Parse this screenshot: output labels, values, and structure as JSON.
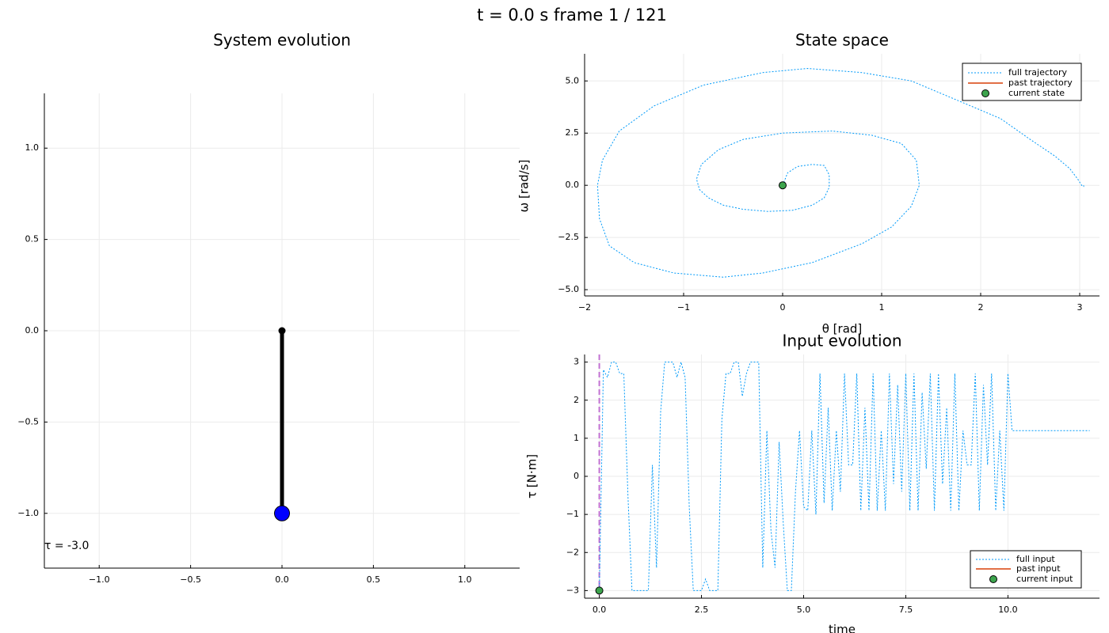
{
  "suptitle": "t = 0.0 s   frame 1 / 121",
  "colors": {
    "traj": "#009af9",
    "past": "#e26f46",
    "current": "#3da44d",
    "bob": "#0000ff",
    "rod": "#000000",
    "marker": "#c271d2"
  },
  "chart_data": [
    {
      "type": "line",
      "title": "System evolution",
      "xlim": [
        -1.3,
        1.3
      ],
      "ylim": [
        -1.3,
        1.3
      ],
      "xticks": [
        -1.0,
        -0.5,
        0.0,
        0.5,
        1.0
      ],
      "xtick_labels": [
        "−1.0",
        "−0.5",
        "0.0",
        "0.5",
        "1.0"
      ],
      "yticks": [
        -1.0,
        -0.5,
        0.0,
        0.5,
        1.0
      ],
      "ytick_labels": [
        "−1.0",
        "−0.5",
        "0.0",
        "0.5",
        "1.0"
      ],
      "grid": true,
      "pivot": [
        0.0,
        0.0
      ],
      "bob": [
        0.0,
        -1.0
      ],
      "annotation": "τ = -3.0"
    },
    {
      "type": "line",
      "title": "State space",
      "xlabel": "θ [rad]",
      "ylabel": "ω [rad/s]",
      "xlim": [
        -2.0,
        3.2
      ],
      "ylim": [
        -5.3,
        6.3
      ],
      "xticks": [
        -2,
        -1,
        0,
        1,
        2,
        3
      ],
      "xtick_labels": [
        "−2",
        "−1",
        "0",
        "1",
        "2",
        "3"
      ],
      "yticks": [
        -5.0,
        -2.5,
        0.0,
        2.5,
        5.0
      ],
      "ytick_labels": [
        "−5.0",
        "−2.5",
        "0.0",
        "2.5",
        "5.0"
      ],
      "grid": true,
      "legend": "top-right",
      "series": [
        {
          "name": "full trajectory",
          "style": "dotted",
          "x": [
            0.0,
            0.05,
            0.15,
            0.3,
            0.42,
            0.47,
            0.47,
            0.42,
            0.3,
            0.1,
            -0.15,
            -0.4,
            -0.6,
            -0.75,
            -0.84,
            -0.87,
            -0.82,
            -0.65,
            -0.4,
            0.0,
            0.5,
            0.9,
            1.2,
            1.35,
            1.38,
            1.3,
            1.1,
            0.8,
            0.3,
            -0.2,
            -0.6,
            -1.1,
            -1.5,
            -1.75,
            -1.85,
            -1.87,
            -1.82,
            -1.65,
            -1.3,
            -0.8,
            -0.2,
            0.25,
            0.8,
            1.3,
            1.6,
            1.9,
            2.2,
            2.5,
            2.75,
            2.9,
            2.98,
            3.02,
            3.04,
            3.04
          ],
          "y": [
            0.0,
            0.6,
            0.9,
            1.0,
            0.95,
            0.5,
            -0.1,
            -0.6,
            -0.95,
            -1.2,
            -1.25,
            -1.15,
            -0.95,
            -0.6,
            -0.2,
            0.3,
            1.0,
            1.7,
            2.2,
            2.5,
            2.6,
            2.4,
            2.0,
            1.2,
            0.0,
            -1.0,
            -2.0,
            -2.8,
            -3.7,
            -4.2,
            -4.4,
            -4.2,
            -3.7,
            -2.9,
            -1.6,
            0.0,
            1.2,
            2.6,
            3.8,
            4.8,
            5.4,
            5.6,
            5.4,
            5.0,
            4.4,
            3.8,
            3.2,
            2.2,
            1.4,
            0.8,
            0.3,
            0.0,
            -0.05,
            0.0
          ]
        },
        {
          "name": "past trajectory",
          "style": "solid",
          "x": [
            0.0
          ],
          "y": [
            0.0
          ]
        },
        {
          "name": "current state",
          "style": "marker",
          "x": [
            0.0
          ],
          "y": [
            0.0
          ]
        }
      ]
    },
    {
      "type": "line",
      "title": "Input evolution",
      "xlabel": "time",
      "ylabel": "τ [N·m]",
      "xlim": [
        -0.36,
        12.24
      ],
      "ylim": [
        -3.2,
        3.2
      ],
      "xticks": [
        0.0,
        2.5,
        5.0,
        7.5,
        10.0
      ],
      "xtick_labels": [
        "0.0",
        "2.5",
        "5.0",
        "7.5",
        "10.0"
      ],
      "yticks": [
        -3,
        -2,
        -1,
        0,
        1,
        2,
        3
      ],
      "ytick_labels": [
        "−3",
        "−2",
        "−1",
        "0",
        "1",
        "2",
        "3"
      ],
      "grid": true,
      "legend": "bottom-right",
      "series": [
        {
          "name": "full input",
          "style": "dotted",
          "x": [
            0.0,
            0.1,
            0.2,
            0.3,
            0.4,
            0.5,
            0.6,
            0.7,
            0.8,
            0.9,
            1.0,
            1.1,
            1.2,
            1.3,
            1.4,
            1.5,
            1.6,
            1.7,
            1.8,
            1.9,
            2.0,
            2.1,
            2.2,
            2.3,
            2.4,
            2.5,
            2.6,
            2.7,
            2.8,
            2.9,
            3.0,
            3.1,
            3.2,
            3.3,
            3.4,
            3.5,
            3.6,
            3.7,
            3.8,
            3.9,
            4.0,
            4.1,
            4.2,
            4.3,
            4.4,
            4.5,
            4.6,
            4.7,
            4.8,
            4.9,
            5.0,
            5.1,
            5.2,
            5.3,
            5.4,
            5.5,
            5.6,
            5.7,
            5.8,
            5.9,
            6.0,
            6.1,
            6.2,
            6.3,
            6.4,
            6.5,
            6.6,
            6.7,
            6.8,
            6.9,
            7.0,
            7.1,
            7.2,
            7.3,
            7.4,
            7.5,
            7.6,
            7.7,
            7.8,
            7.9,
            8.0,
            8.1,
            8.2,
            8.3,
            8.4,
            8.5,
            8.6,
            8.7,
            8.8,
            8.9,
            9.0,
            9.1,
            9.2,
            9.3,
            9.4,
            9.5,
            9.6,
            9.7,
            9.8,
            9.9,
            10.0,
            10.1,
            10.2,
            10.3,
            10.4,
            10.5,
            10.6,
            10.7,
            10.8,
            10.9,
            11.0,
            11.1,
            11.2,
            11.3,
            11.4,
            11.5,
            11.6,
            11.7,
            11.8,
            11.9,
            12.0
          ],
          "y": [
            -3.0,
            2.8,
            2.6,
            3.0,
            3.0,
            2.7,
            2.7,
            -0.5,
            -3.0,
            -3.0,
            -3.0,
            -3.0,
            -3.0,
            0.3,
            -2.4,
            1.7,
            3.0,
            3.0,
            3.0,
            2.6,
            3.0,
            2.6,
            -0.8,
            -3.0,
            -3.0,
            -3.0,
            -2.7,
            -3.0,
            -3.0,
            -3.0,
            1.5,
            2.7,
            2.7,
            3.0,
            3.0,
            2.1,
            2.7,
            3.0,
            3.0,
            3.0,
            -2.4,
            1.2,
            -1.4,
            -2.4,
            0.9,
            -1.2,
            -3.0,
            -3.0,
            -0.4,
            1.2,
            -0.8,
            -0.9,
            1.2,
            -1.0,
            2.7,
            -0.7,
            1.8,
            -0.9,
            1.2,
            -0.4,
            2.7,
            0.3,
            0.3,
            2.7,
            -0.9,
            1.8,
            -0.9,
            2.7,
            -0.9,
            1.2,
            -0.9,
            2.7,
            -0.2,
            2.4,
            -0.4,
            2.7,
            -0.9,
            2.7,
            -0.9,
            2.2,
            0.2,
            2.7,
            -0.9,
            2.7,
            -0.2,
            1.8,
            -0.9,
            2.7,
            -0.9,
            1.2,
            0.3,
            0.3,
            2.7,
            -0.9,
            2.4,
            0.3,
            2.7,
            -0.9,
            1.2,
            -0.9,
            2.7,
            1.2,
            1.2,
            1.2,
            1.2,
            1.2,
            1.2,
            1.2,
            1.2,
            1.2,
            1.2,
            1.2,
            1.2,
            1.2,
            1.2,
            1.2,
            1.2,
            1.2,
            1.2,
            1.2,
            1.2
          ]
        },
        {
          "name": "past input",
          "style": "solid",
          "x": [
            0.0
          ],
          "y": [
            -3.0
          ]
        },
        {
          "name": "current input",
          "style": "marker",
          "x": [
            0.0
          ],
          "y": [
            -3.0
          ]
        }
      ]
    }
  ]
}
